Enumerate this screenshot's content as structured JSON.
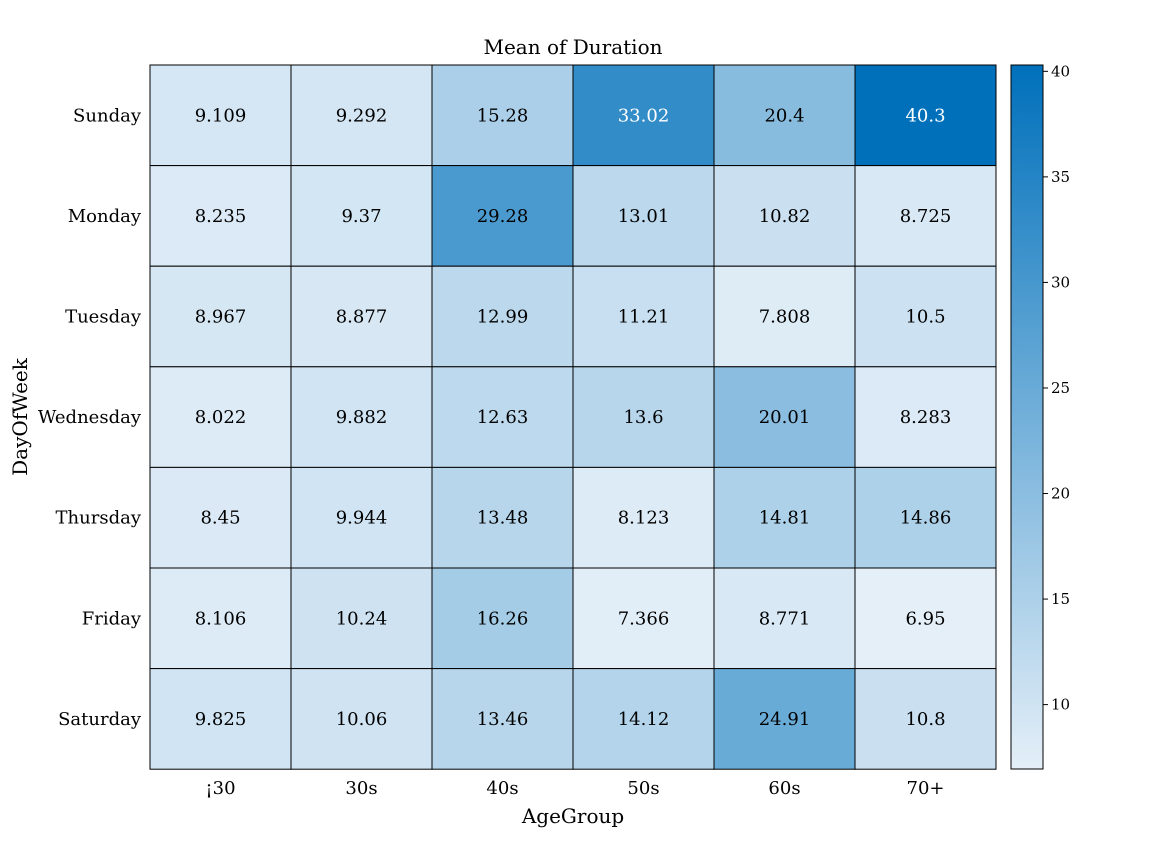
{
  "chart_data": {
    "type": "heatmap",
    "title": "Mean of Duration",
    "xlabel": "AgeGroup",
    "ylabel": "DayOfWeek",
    "x_categories": [
      "¡30",
      "30s",
      "40s",
      "50s",
      "60s",
      "70+"
    ],
    "y_categories": [
      "Sunday",
      "Monday",
      "Tuesday",
      "Wednesday",
      "Thursday",
      "Friday",
      "Saturday"
    ],
    "values": [
      [
        9.109,
        9.292,
        15.28,
        33.02,
        20.4,
        40.3
      ],
      [
        8.235,
        9.37,
        29.28,
        13.01,
        10.82,
        8.725
      ],
      [
        8.967,
        8.877,
        12.99,
        11.21,
        7.808,
        10.5
      ],
      [
        8.022,
        9.882,
        12.63,
        13.6,
        20.01,
        8.283
      ],
      [
        8.45,
        9.944,
        13.48,
        8.123,
        14.81,
        14.86
      ],
      [
        8.106,
        10.24,
        16.26,
        7.366,
        8.771,
        6.95
      ],
      [
        9.825,
        10.06,
        13.46,
        14.12,
        24.91,
        10.8
      ]
    ],
    "cell_labels": [
      [
        "9.109",
        "9.292",
        "15.28",
        "33.02",
        "20.4",
        "40.3"
      ],
      [
        "8.235",
        "9.37",
        "29.28",
        "13.01",
        "10.82",
        "8.725"
      ],
      [
        "8.967",
        "8.877",
        "12.99",
        "11.21",
        "7.808",
        "10.5"
      ],
      [
        "8.022",
        "9.882",
        "12.63",
        "13.6",
        "20.01",
        "8.283"
      ],
      [
        "8.45",
        "9.944",
        "13.48",
        "8.123",
        "14.81",
        "14.86"
      ],
      [
        "8.106",
        "10.24",
        "16.26",
        "7.366",
        "8.771",
        "6.95"
      ],
      [
        "9.825",
        "10.06",
        "13.46",
        "14.12",
        "24.91",
        "10.8"
      ]
    ],
    "colorbar": {
      "min": 6.95,
      "max": 40.3,
      "ticks": [
        10,
        15,
        20,
        25,
        30,
        35,
        40
      ],
      "tick_labels": [
        "10",
        "15",
        "20",
        "25",
        "30",
        "35",
        "40"
      ],
      "color_low": "#e4eff8",
      "color_high": "#0070bb"
    },
    "light_text_threshold": 30,
    "grid": false,
    "legend": "right (colorbar)"
  }
}
